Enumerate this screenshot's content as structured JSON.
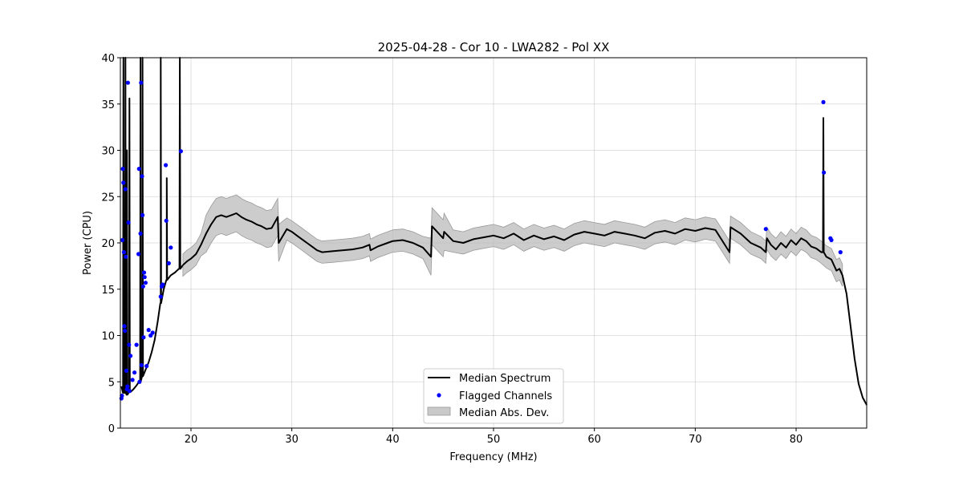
{
  "chart_data": {
    "type": "line",
    "title": "2025-04-28 - Cor 10 - LWA282 - Pol XX",
    "xlabel": "Frequency (MHz)",
    "ylabel": "Power (CPU)",
    "xlim": [
      13,
      87
    ],
    "ylim": [
      0,
      40
    ],
    "xticks": [
      20,
      30,
      40,
      50,
      60,
      70,
      80
    ],
    "yticks": [
      0,
      5,
      10,
      15,
      20,
      25,
      30,
      35,
      40
    ],
    "grid": true,
    "legend": {
      "position": "lower-center",
      "entries": [
        "Median Spectrum",
        "Flagged Channels",
        "Median Abs. Dev."
      ]
    },
    "colors": {
      "median": "#000000",
      "flagged": "#0000ff",
      "band": "#bbbbbb"
    },
    "median_spectrum": {
      "x": [
        13.1,
        13.4,
        13.7,
        14.0,
        14.3,
        14.6,
        14.9,
        15.2,
        15.5,
        15.8,
        16.1,
        16.4,
        16.7,
        17.0,
        17.3,
        17.6,
        18.0,
        18.4,
        18.8,
        19.2,
        19.6,
        20.0,
        20.5,
        21.0,
        21.5,
        22.0,
        22.5,
        23.0,
        23.5,
        24.0,
        24.5,
        25.0,
        25.5,
        26.0,
        26.5,
        27.0,
        27.5,
        28.0,
        28.6,
        28.7,
        29.5,
        30.0,
        30.5,
        31.0,
        31.5,
        32.0,
        32.5,
        33.0,
        34.0,
        35.0,
        36.0,
        37.0,
        37.7,
        37.8,
        38.5,
        39.5,
        40.0,
        41.0,
        42.0,
        43.0,
        43.8,
        43.9,
        45.0,
        45.1,
        46.0,
        47.0,
        48.0,
        49.0,
        50.0,
        51.0,
        52.0,
        53.0,
        54.0,
        55.0,
        56.0,
        57.0,
        58.0,
        59.0,
        60.0,
        61.0,
        62.0,
        63.0,
        64.0,
        65.0,
        66.0,
        67.0,
        68.0,
        69.0,
        70.0,
        71.0,
        72.0,
        73.4,
        73.5,
        74.5,
        75.5,
        76.5,
        77.0,
        77.1,
        77.5,
        78.0,
        78.5,
        79.0,
        79.5,
        80.0,
        80.5,
        81.0,
        81.5,
        82.0,
        82.5,
        83.0,
        83.5,
        84.0,
        84.3,
        84.6,
        85.0,
        85.4,
        85.8,
        86.2,
        86.6,
        87.0
      ],
      "y": [
        4.5,
        3.8,
        3.6,
        3.9,
        4.2,
        4.6,
        5.1,
        5.6,
        6.3,
        7.1,
        8.2,
        9.5,
        11.5,
        13.5,
        15.0,
        16.0,
        16.5,
        16.8,
        17.2,
        17.6,
        18.0,
        18.3,
        18.8,
        19.8,
        21.0,
        22.0,
        22.8,
        23.0,
        22.8,
        23.0,
        23.2,
        22.8,
        22.5,
        22.3,
        22.0,
        21.8,
        21.5,
        21.6,
        22.8,
        20.0,
        21.5,
        21.2,
        20.8,
        20.4,
        20.0,
        19.6,
        19.2,
        19.0,
        19.1,
        19.2,
        19.3,
        19.5,
        19.8,
        19.2,
        19.6,
        20.0,
        20.2,
        20.3,
        20.0,
        19.5,
        18.5,
        21.8,
        20.5,
        21.2,
        20.2,
        20.0,
        20.4,
        20.6,
        20.8,
        20.5,
        21.0,
        20.3,
        20.8,
        20.4,
        20.7,
        20.3,
        20.9,
        21.2,
        21.0,
        20.8,
        21.2,
        21.0,
        20.8,
        20.5,
        21.1,
        21.3,
        21.0,
        21.5,
        21.3,
        21.6,
        21.4,
        19.0,
        21.7,
        21.0,
        20.0,
        19.5,
        19.0,
        20.5,
        19.8,
        19.3,
        20.0,
        19.5,
        20.3,
        19.8,
        20.5,
        20.2,
        19.6,
        19.4,
        19.0,
        18.5,
        18.2,
        17.0,
        17.2,
        16.5,
        14.5,
        11.0,
        7.5,
        4.8,
        3.3,
        2.5
      ],
      "spikes": [
        {
          "x": 13.3,
          "y": 40
        },
        {
          "x": 13.5,
          "y": 40
        },
        {
          "x": 13.65,
          "y": 30
        },
        {
          "x": 13.9,
          "y": 35.6
        },
        {
          "x": 15.0,
          "y": 40
        },
        {
          "x": 15.2,
          "y": 40
        },
        {
          "x": 17.0,
          "y": 40
        },
        {
          "x": 17.6,
          "y": 27.0
        },
        {
          "x": 18.9,
          "y": 40
        },
        {
          "x": 82.7,
          "y": 33.5
        }
      ]
    },
    "median_abs_dev": {
      "halfwidth_typical": 1.2,
      "halfwidth_max": 2.0
    },
    "flagged_channels": {
      "x": [
        13.1,
        13.15,
        13.2,
        13.25,
        13.3,
        13.35,
        13.4,
        13.45,
        13.5,
        13.55,
        13.6,
        13.65,
        13.7,
        13.75,
        13.8,
        13.85,
        13.9,
        14.0,
        14.2,
        14.4,
        14.6,
        14.8,
        14.85,
        14.9,
        15.0,
        15.05,
        15.1,
        15.15,
        15.2,
        15.25,
        15.3,
        15.35,
        15.4,
        15.5,
        15.6,
        15.8,
        16.0,
        16.2,
        17.0,
        17.1,
        17.2,
        17.5,
        17.55,
        17.8,
        18.0,
        19.0,
        77.0,
        82.7,
        82.75,
        83.4,
        83.5,
        84.4
      ],
      "y": [
        3.2,
        3.5,
        20.3,
        28.0,
        26.5,
        19.0,
        11.0,
        10.5,
        25.8,
        18.5,
        6.2,
        4.2,
        4.5,
        37.3,
        22.2,
        9.0,
        4.0,
        7.8,
        5.2,
        6.0,
        9.0,
        18.8,
        28.0,
        5.0,
        21.0,
        37.3,
        6.8,
        27.2,
        23.0,
        15.3,
        9.8,
        16.8,
        16.3,
        15.7,
        6.7,
        10.6,
        10.0,
        10.3,
        14.2,
        15.3,
        15.5,
        28.4,
        22.4,
        17.8,
        19.5,
        29.9,
        21.5,
        35.2,
        27.6,
        20.5,
        20.3,
        19.0
      ]
    }
  }
}
